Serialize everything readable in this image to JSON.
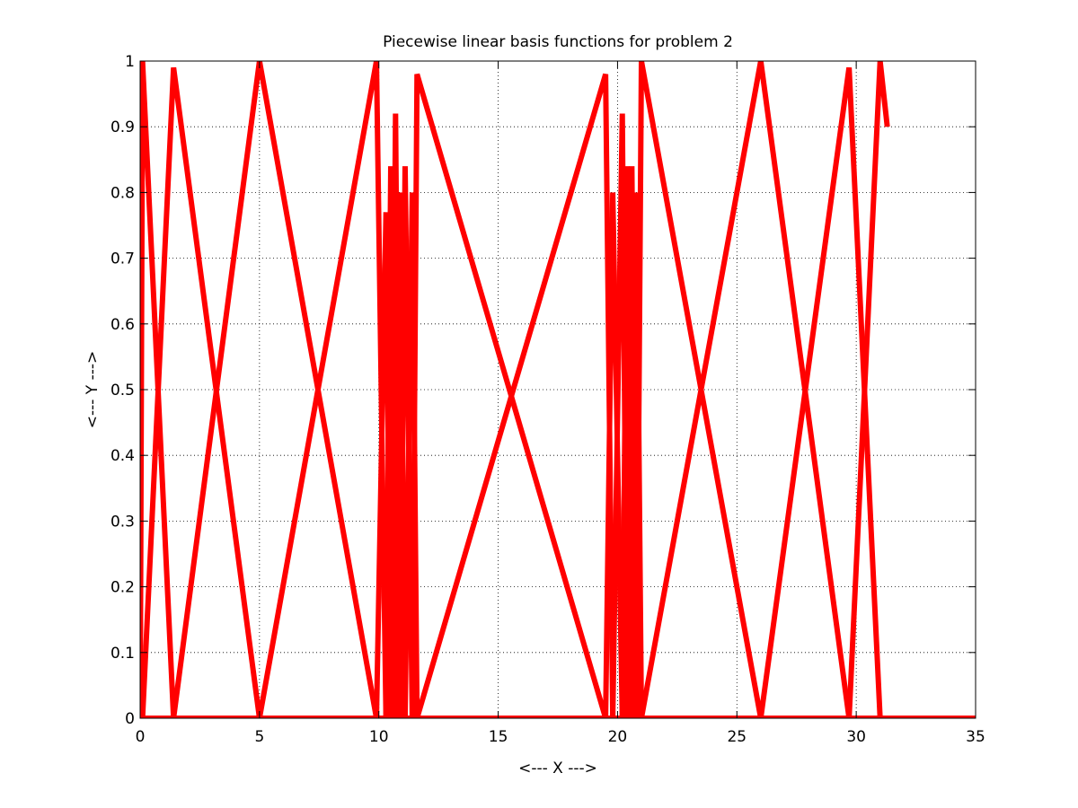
{
  "chart_data": {
    "type": "line",
    "title": "Piecewise linear basis functions for problem 2",
    "xlabel": "<--- X --->",
    "ylabel": "<--- Y --->",
    "xlim": [
      0,
      35
    ],
    "ylim": [
      0,
      1
    ],
    "x_ticks": [
      "0",
      "5",
      "10",
      "15",
      "20",
      "25",
      "30",
      "35"
    ],
    "y_ticks": [
      "0",
      "0.1",
      "0.2",
      "0.3",
      "0.4",
      "0.5",
      "0.6",
      "0.7",
      "0.8",
      "0.9",
      "1"
    ],
    "grid": true,
    "legend": "none",
    "line_color": "#ff0000",
    "series": [
      {
        "x": [
          0,
          0.1,
          1.4
        ],
        "y": [
          0,
          1,
          0
        ]
      },
      {
        "x": [
          0.1,
          1.4,
          5.0
        ],
        "y": [
          0,
          0.99,
          0
        ]
      },
      {
        "x": [
          1.4,
          5.0,
          9.9
        ],
        "y": [
          0,
          1,
          0
        ]
      },
      {
        "x": [
          5.0,
          9.9,
          10.3
        ],
        "y": [
          0,
          1,
          0
        ]
      },
      {
        "x": [
          9.9,
          10.3,
          10.5
        ],
        "y": [
          0,
          0.77,
          0
        ]
      },
      {
        "x": [
          10.3,
          10.5,
          10.7
        ],
        "y": [
          0,
          0.84,
          0
        ]
      },
      {
        "x": [
          10.5,
          10.7,
          10.9
        ],
        "y": [
          0,
          0.92,
          0
        ]
      },
      {
        "x": [
          10.7,
          10.9,
          11.1
        ],
        "y": [
          0,
          0.8,
          0
        ]
      },
      {
        "x": [
          10.9,
          11.1,
          11.4
        ],
        "y": [
          0,
          0.84,
          0
        ]
      },
      {
        "x": [
          11.1,
          11.4,
          11.6
        ],
        "y": [
          0,
          0.8,
          0
        ]
      },
      {
        "x": [
          11.4,
          11.6,
          19.5
        ],
        "y": [
          0,
          0.98,
          0
        ]
      },
      {
        "x": [
          11.6,
          19.5,
          19.8
        ],
        "y": [
          0,
          0.98,
          0
        ]
      },
      {
        "x": [
          19.5,
          19.8,
          20.2
        ],
        "y": [
          0,
          0.8,
          0
        ]
      },
      {
        "x": [
          19.8,
          20.2,
          20.4
        ],
        "y": [
          0,
          0.92,
          0
        ]
      },
      {
        "x": [
          20.2,
          20.4,
          20.6
        ],
        "y": [
          0,
          0.84,
          0
        ]
      },
      {
        "x": [
          20.4,
          20.6,
          20.8
        ],
        "y": [
          0,
          0.84,
          0
        ]
      },
      {
        "x": [
          20.6,
          20.8,
          21.0
        ],
        "y": [
          0,
          0.8,
          0
        ]
      },
      {
        "x": [
          20.8,
          21.0,
          26.0
        ],
        "y": [
          0,
          1,
          0
        ]
      },
      {
        "x": [
          21.0,
          26.0,
          29.7
        ],
        "y": [
          0,
          1,
          0
        ]
      },
      {
        "x": [
          26.0,
          29.7,
          31.0
        ],
        "y": [
          0,
          0.99,
          0
        ]
      },
      {
        "x": [
          29.7,
          31.0,
          31.3
        ],
        "y": [
          0,
          1,
          0.9
        ]
      }
    ]
  }
}
